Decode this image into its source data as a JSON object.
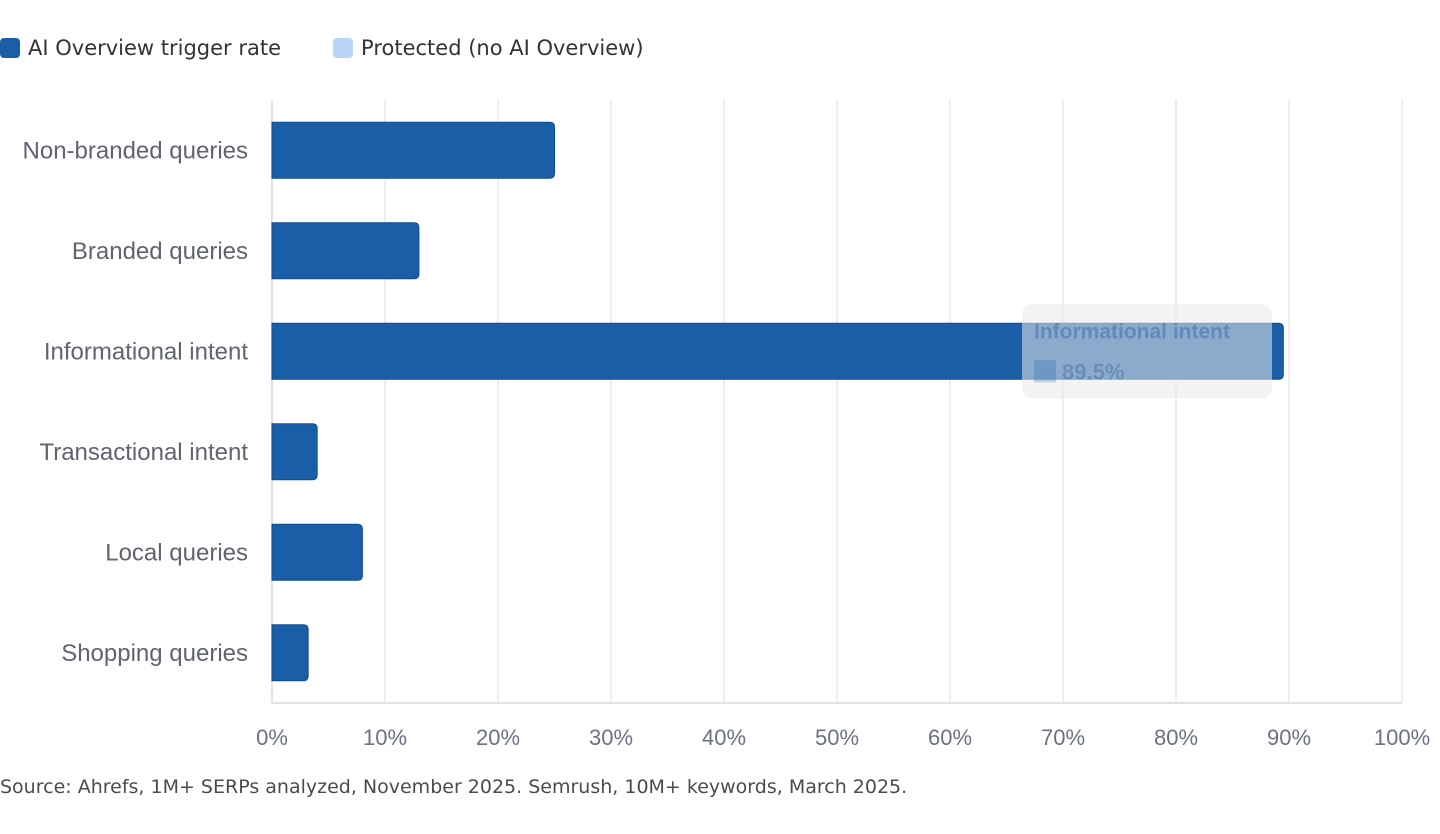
{
  "legend": {
    "items": [
      {
        "label": "AI Overview trigger rate",
        "color": "#1a5ea8"
      },
      {
        "label": "Protected (no AI Overview)",
        "color": "#b9d7f5"
      }
    ]
  },
  "chart_data": {
    "type": "bar",
    "orientation": "horizontal",
    "categories": [
      "Non-branded queries",
      "Branded queries",
      "Informational intent",
      "Transactional intent",
      "Local queries",
      "Shopping queries"
    ],
    "series": [
      {
        "name": "AI Overview trigger rate",
        "color": "#1a5ea8",
        "values": [
          25,
          13,
          89.5,
          4,
          8,
          3.2
        ]
      }
    ],
    "xlim": [
      0,
      100
    ],
    "x_ticks": [
      "0%",
      "10%",
      "20%",
      "30%",
      "40%",
      "50%",
      "60%",
      "70%",
      "80%",
      "90%",
      "100%"
    ],
    "grid": true,
    "legend_position": "top-left",
    "tooltip": {
      "category": "Informational intent",
      "value_label": "89.5%"
    }
  },
  "source": "Source: Ahrefs, 1M+ SERPs analyzed, November 2025. Semrush, 10M+ keywords, March 2025."
}
